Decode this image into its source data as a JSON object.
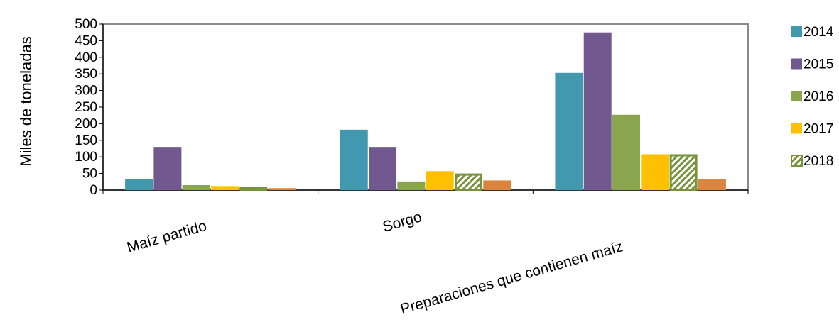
{
  "chart_data": {
    "type": "bar",
    "title": "",
    "xlabel": "",
    "ylabel": "Miles de  toneladas",
    "ylim": [
      0,
      500
    ],
    "yticks": [
      0,
      50,
      100,
      150,
      200,
      250,
      300,
      350,
      400,
      450,
      500
    ],
    "grid": false,
    "legend_position": "right",
    "categories": [
      "Maíz partido",
      "Sorgo",
      "Preparaciones que contienen maíz"
    ],
    "series": [
      {
        "name": "2014",
        "color": "#4198AF",
        "values": [
          34,
          182,
          353
        ]
      },
      {
        "name": "2015",
        "color": "#71588F",
        "values": [
          130,
          130,
          475
        ]
      },
      {
        "name": "2016",
        "color": "#89A54E",
        "values": [
          15,
          26,
          227
        ]
      },
      {
        "name": "2017",
        "color": "#FFC000",
        "values": [
          12,
          57,
          108
        ]
      },
      {
        "name": "2018",
        "color": "#77933C",
        "pattern": "hatch",
        "values": [
          10,
          50,
          108
        ]
      },
      {
        "name": "",
        "color": "#DB843D",
        "values": [
          6,
          29,
          32
        ],
        "in_legend": false
      }
    ]
  }
}
